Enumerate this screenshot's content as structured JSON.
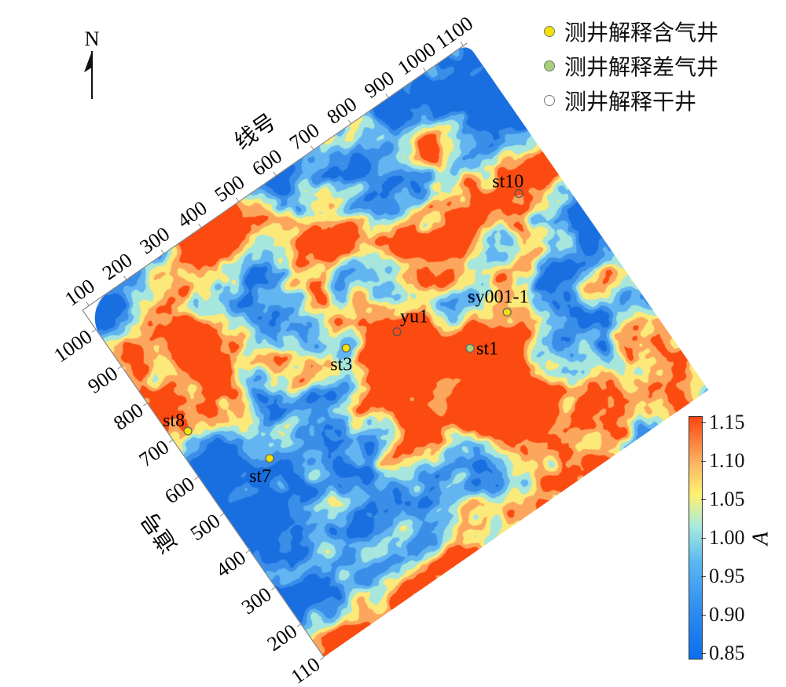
{
  "chart_data": {
    "type": "heatmap",
    "north_label": "N",
    "x_axis": {
      "label": "线号",
      "ticks": [
        100,
        200,
        300,
        400,
        500,
        600,
        700,
        800,
        900,
        1000,
        1100
      ]
    },
    "y_axis": {
      "label": "道号",
      "ticks": [
        110,
        200,
        300,
        400,
        500,
        600,
        700,
        800,
        900,
        1000
      ]
    },
    "colorbar": {
      "label": "A",
      "range": [
        0.85,
        1.15
      ],
      "ticks": [
        "0.85",
        "0.90",
        "0.95",
        "1.00",
        "1.05",
        "1.10",
        "1.15"
      ],
      "colors": [
        "#1a6fe0",
        "#3a8ee8",
        "#62b5f0",
        "#a6e6dc",
        "#fbe97a",
        "#fba65c",
        "#fc4b10"
      ]
    },
    "legend": [
      {
        "label": "测井解释含气井",
        "color": "#f2e200"
      },
      {
        "label": "测井解释差气井",
        "color": "#a9cf7a"
      },
      {
        "label": "测井解释干井",
        "color": "#ffffff"
      }
    ],
    "wells": [
      {
        "name": "st10",
        "type": "干井",
        "line": 1015,
        "trace": 711
      },
      {
        "name": "sy001-1",
        "type": "含气井",
        "line": 845,
        "trace": 509
      },
      {
        "name": "yu1",
        "type": "干井",
        "line": 622,
        "trace": 613
      },
      {
        "name": "st1",
        "type": "差气井",
        "line": 733,
        "trace": 490
      },
      {
        "name": "st3",
        "type": "含气井",
        "line": 510,
        "trace": 648
      },
      {
        "name": "st8",
        "type": "含气井",
        "line": 121,
        "trace": 697
      },
      {
        "name": "st7",
        "type": "含气井",
        "line": 234,
        "trace": 543
      }
    ]
  }
}
